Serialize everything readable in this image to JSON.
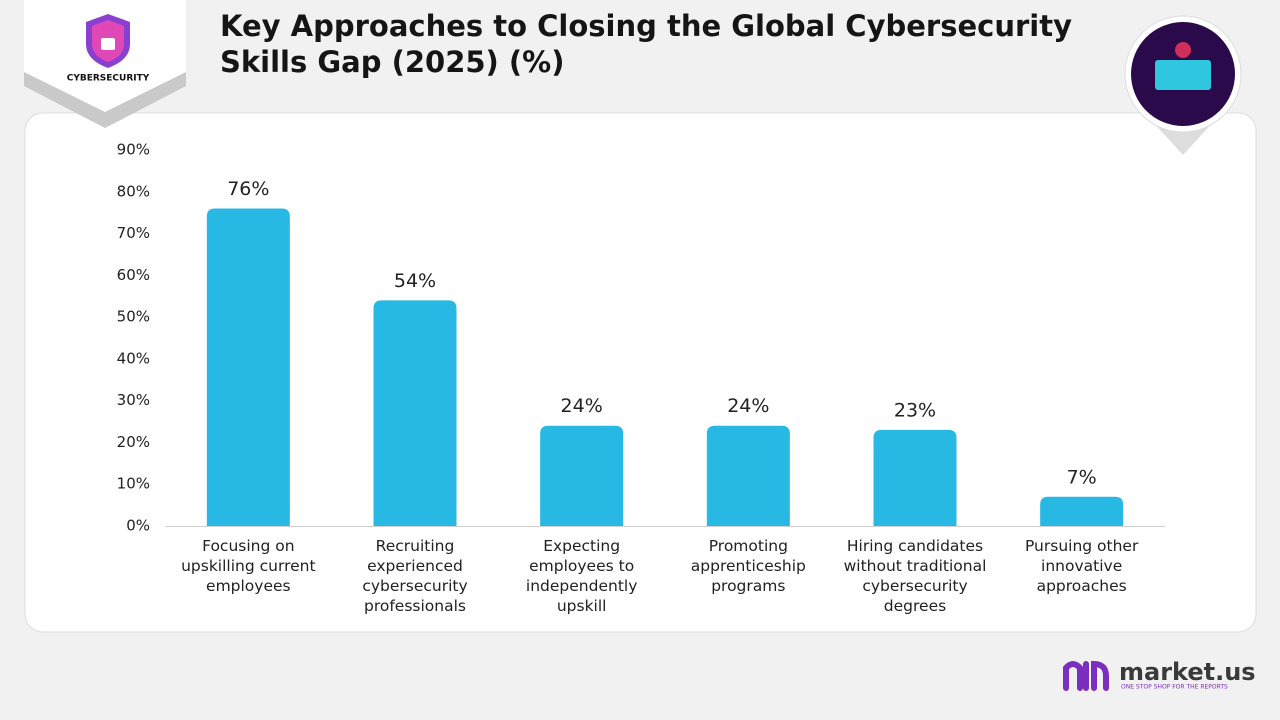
{
  "chart_data": {
    "type": "bar",
    "title": "Key Approaches to Closing the Global Cybersecurity Skills Gap (2025)  (%)",
    "categories": [
      "Focusing on upskilling current employees",
      "Recruiting experienced cybersecurity professionals",
      "Expecting employees to independently upskill",
      "Promoting apprenticeship programs",
      "Hiring candidates without traditional cybersecurity degrees",
      "Pursuing other innovative approaches"
    ],
    "values": [
      76,
      54,
      24,
      24,
      23,
      7
    ],
    "value_labels": [
      "76%",
      "54%",
      "24%",
      "24%",
      "23%",
      "7%"
    ],
    "color": "#27b8e3",
    "ylim": [
      0,
      90
    ],
    "yticks": [
      {
        "value": 0,
        "label": "0%"
      },
      {
        "value": 10,
        "label": "10%"
      },
      {
        "value": 20,
        "label": "20%"
      },
      {
        "value": 30,
        "label": "30%"
      },
      {
        "value": 40,
        "label": "40%"
      },
      {
        "value": 50,
        "label": "50%"
      },
      {
        "value": 60,
        "label": "60%"
      },
      {
        "value": 70,
        "label": "70%"
      },
      {
        "value": 80,
        "label": "80%"
      },
      {
        "value": 90,
        "label": "90%"
      }
    ],
    "grid": false
  },
  "branding": {
    "badge": "CYBERSECURITY",
    "logo": "market.us",
    "tagline": "ONE STOP SHOP FOR THE REPORTS"
  }
}
